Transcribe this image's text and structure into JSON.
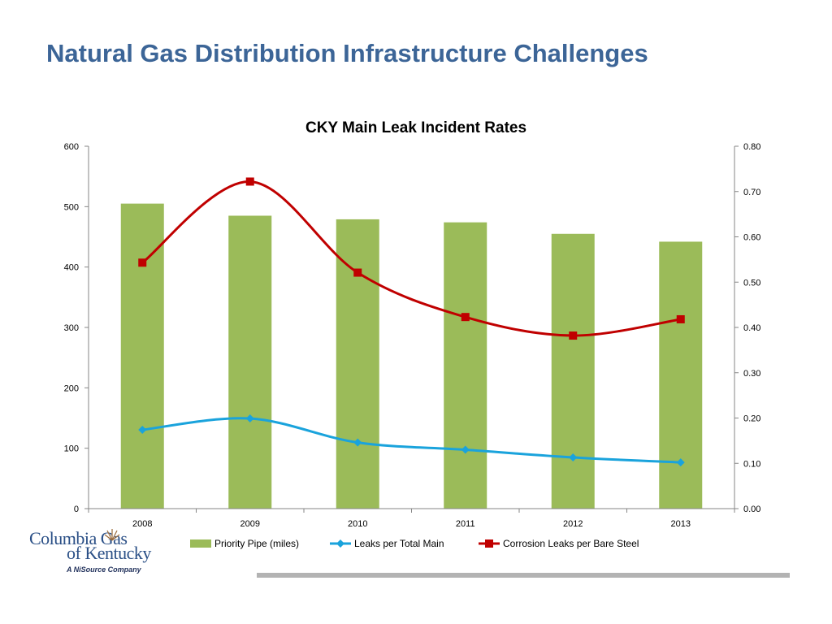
{
  "slide": {
    "title": "Natural Gas Distribution Infrastructure Challenges"
  },
  "logo": {
    "line1": "Columbia Gas",
    "line2": "of Kentucky",
    "tagline": "A NiSource Company"
  },
  "colors": {
    "title": "#3c6597",
    "bar": "#9bbb59",
    "leaks_total": "#1aa3dc",
    "corrosion": "#c00000",
    "axis": "#868686",
    "footer_bar": "#b3b3b3"
  },
  "chart_data": {
    "type": "bar",
    "title": "CKY Main Leak Incident Rates",
    "categories": [
      "2008",
      "2009",
      "2010",
      "2011",
      "2012",
      "2013"
    ],
    "series": [
      {
        "name": "Priority Pipe (miles)",
        "kind": "bar",
        "axis": "left",
        "values": [
          505,
          485,
          479,
          474,
          455,
          442
        ]
      },
      {
        "name": "Leaks per Total Main",
        "kind": "line",
        "marker": "diamond",
        "axis": "right",
        "smooth": true,
        "values": [
          0.174,
          0.199,
          0.146,
          0.13,
          0.113,
          0.102
        ]
      },
      {
        "name": "Corrosion Leaks per Bare Steel",
        "kind": "line",
        "marker": "square",
        "axis": "right",
        "smooth": true,
        "values": [
          0.543,
          0.722,
          0.521,
          0.423,
          0.382,
          0.418
        ]
      }
    ],
    "y_left": {
      "min": 0,
      "max": 600,
      "step": 100,
      "ticks": [
        "0",
        "100",
        "200",
        "300",
        "400",
        "500",
        "600"
      ]
    },
    "y_right": {
      "min": 0,
      "max": 0.8,
      "step": 0.1,
      "ticks": [
        "0.00",
        "0.10",
        "0.20",
        "0.30",
        "0.40",
        "0.50",
        "0.60",
        "0.70",
        "0.80"
      ]
    },
    "grid": false,
    "legend": "bottom"
  }
}
